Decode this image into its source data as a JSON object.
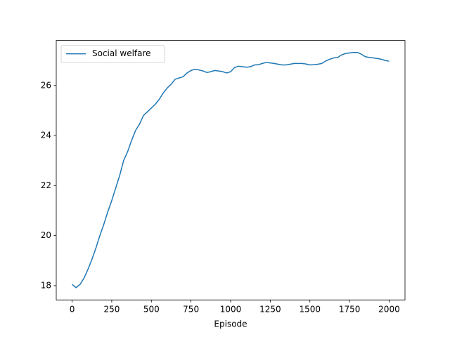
{
  "chart_data": {
    "type": "line",
    "x_label": "Episode",
    "x": [
      0,
      25,
      50,
      75,
      100,
      125,
      150,
      175,
      200,
      225,
      250,
      275,
      300,
      325,
      350,
      375,
      400,
      425,
      450,
      475,
      500,
      525,
      550,
      575,
      600,
      625,
      650,
      675,
      700,
      725,
      750,
      775,
      800,
      825,
      850,
      875,
      900,
      925,
      950,
      975,
      1000,
      1025,
      1050,
      1075,
      1100,
      1125,
      1150,
      1175,
      1200,
      1225,
      1250,
      1275,
      1300,
      1325,
      1350,
      1375,
      1400,
      1425,
      1450,
      1475,
      1500,
      1525,
      1550,
      1575,
      1600,
      1625,
      1650,
      1675,
      1700,
      1725,
      1750,
      1775,
      1800,
      1825,
      1850,
      1875,
      1900,
      1925,
      1950,
      1975,
      2000
    ],
    "series": [
      {
        "name": "Social welfare",
        "color": "#1f77b4",
        "values": [
          18.05,
          17.92,
          18.05,
          18.3,
          18.65,
          19.05,
          19.5,
          20.0,
          20.45,
          20.95,
          21.4,
          21.9,
          22.4,
          23.0,
          23.35,
          23.8,
          24.2,
          24.45,
          24.8,
          24.95,
          25.1,
          25.25,
          25.45,
          25.7,
          25.9,
          26.05,
          26.25,
          26.3,
          26.35,
          26.5,
          26.6,
          26.65,
          26.62,
          26.58,
          26.52,
          26.55,
          26.6,
          26.58,
          26.55,
          26.5,
          26.55,
          26.72,
          26.77,
          26.75,
          26.73,
          26.75,
          26.82,
          26.83,
          26.88,
          26.92,
          26.9,
          26.88,
          26.85,
          26.82,
          26.82,
          26.85,
          26.88,
          26.88,
          26.88,
          26.86,
          26.82,
          26.83,
          26.85,
          26.88,
          26.98,
          27.05,
          27.1,
          27.12,
          27.22,
          27.28,
          27.3,
          27.32,
          27.32,
          27.25,
          27.15,
          27.12,
          27.1,
          27.08,
          27.05,
          27.0,
          26.97
        ]
      }
    ],
    "xlim": [
      -100,
      2100
    ],
    "ylim": [
      17.43,
      27.8
    ],
    "xticks": [
      0,
      250,
      500,
      750,
      1000,
      1250,
      1500,
      1750,
      2000
    ],
    "yticks": [
      18,
      20,
      22,
      24,
      26
    ],
    "legend": "upper left"
  }
}
